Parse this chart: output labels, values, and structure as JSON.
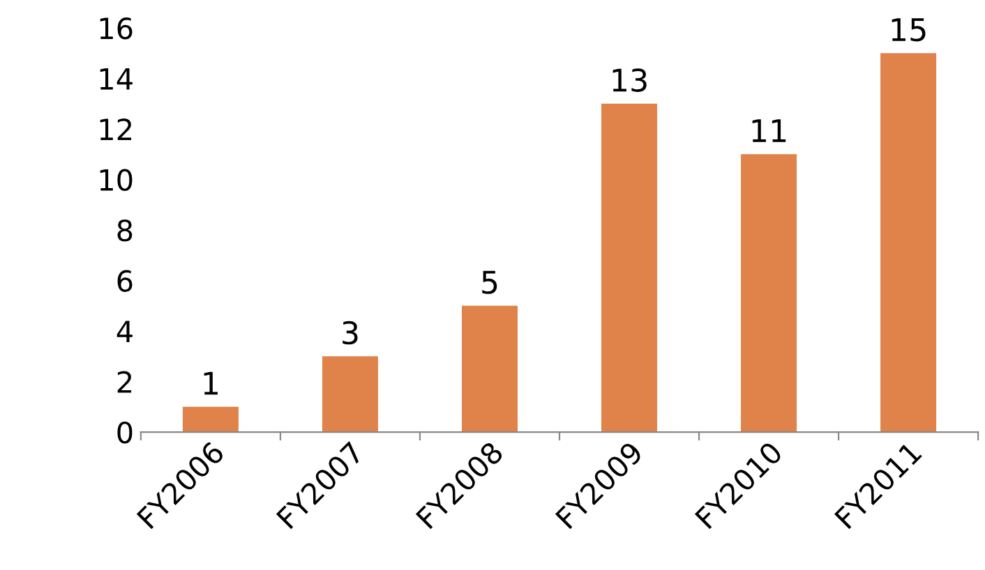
{
  "chart_data": {
    "type": "bar",
    "categories": [
      "FY2006",
      "FY2007",
      "FY2008",
      "FY2009",
      "FY2010",
      "FY2011"
    ],
    "values": [
      1,
      3,
      5,
      13,
      11,
      15
    ],
    "color": "#e0834a",
    "ylim": [
      0,
      16
    ],
    "yticks": [
      0,
      2,
      4,
      6,
      8,
      10,
      12,
      14,
      16
    ],
    "grid": false,
    "data_labels": true
  }
}
